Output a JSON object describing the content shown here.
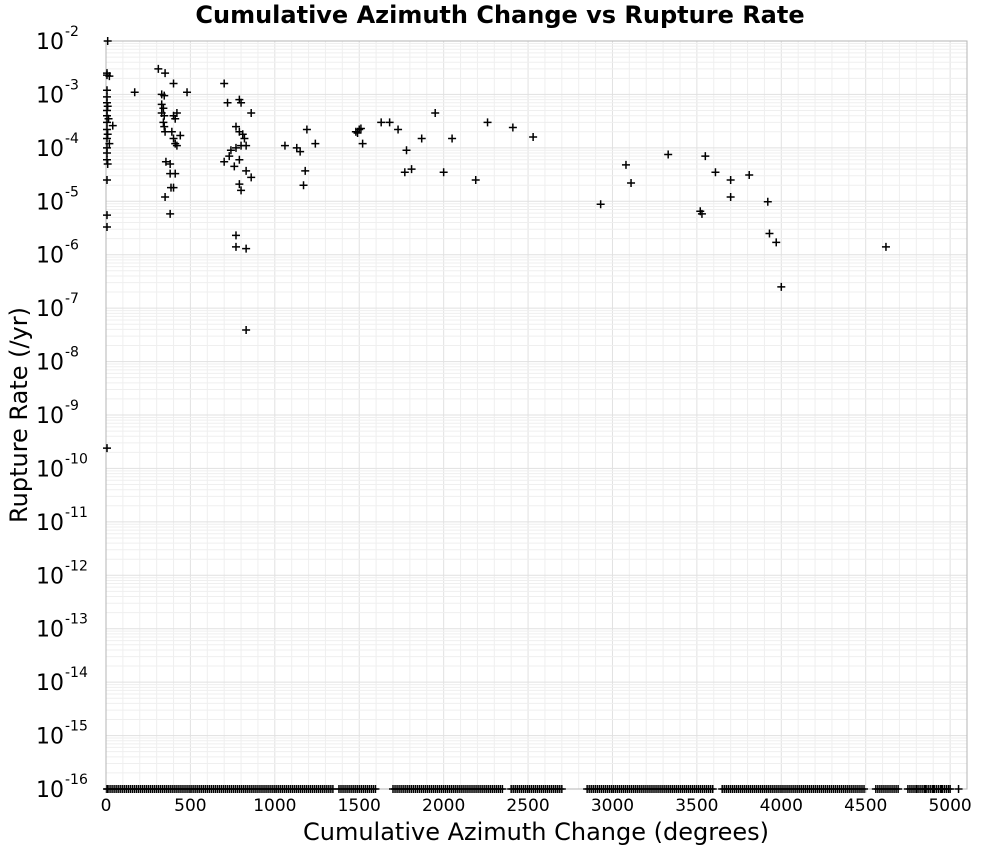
{
  "chart_data": {
    "type": "scatter",
    "title": "Cumulative Azimuth Change vs Rupture Rate",
    "xlabel": "Cumulative Azimuth Change (degrees)",
    "ylabel": "Rupture Rate (/yr)",
    "xlim": [
      0,
      5100
    ],
    "ylim": [
      1e-16,
      0.01
    ],
    "yscale": "log",
    "grid": true,
    "marker": "+",
    "marker_color": "#000000",
    "x_ticks": [
      "0",
      "500",
      "1000",
      "1500",
      "2000",
      "2500",
      "3000",
      "3500",
      "4000",
      "4500",
      "5000"
    ],
    "x_tick_values": [
      0,
      500,
      1000,
      1500,
      2000,
      2500,
      3000,
      3500,
      4000,
      4500,
      5000
    ],
    "y_ticks": [
      {
        "base": "10",
        "exp": "-2"
      },
      {
        "base": "10",
        "exp": "-3"
      },
      {
        "base": "10",
        "exp": "-4"
      },
      {
        "base": "10",
        "exp": "-5"
      },
      {
        "base": "10",
        "exp": "-6"
      },
      {
        "base": "10",
        "exp": "-7"
      },
      {
        "base": "10",
        "exp": "-8"
      },
      {
        "base": "10",
        "exp": "-9"
      },
      {
        "base": "10",
        "exp": "-10"
      },
      {
        "base": "10",
        "exp": "-11"
      },
      {
        "base": "10",
        "exp": "-12"
      },
      {
        "base": "10",
        "exp": "-13"
      },
      {
        "base": "10",
        "exp": "-14"
      },
      {
        "base": "10",
        "exp": "-15"
      },
      {
        "base": "10",
        "exp": "-16"
      }
    ],
    "y_tick_exponents": [
      -2,
      -3,
      -4,
      -5,
      -6,
      -7,
      -8,
      -9,
      -10,
      -11,
      -12,
      -13,
      -14,
      -15,
      -16
    ],
    "points": [
      [
        10,
        0.01
      ],
      [
        0,
        0.0025
      ],
      [
        5,
        0.0023
      ],
      [
        20,
        0.0022
      ],
      [
        0,
        0.0012
      ],
      [
        5,
        0.0009
      ],
      [
        0,
        0.0007
      ],
      [
        10,
        0.0006
      ],
      [
        5,
        0.0005
      ],
      [
        0,
        0.0004
      ],
      [
        15,
        0.00035
      ],
      [
        5,
        0.0003
      ],
      [
        40,
        0.00026
      ],
      [
        0,
        0.00022
      ],
      [
        10,
        0.00018
      ],
      [
        5,
        0.00015
      ],
      [
        20,
        0.00012
      ],
      [
        0,
        0.0001
      ],
      [
        5,
        8e-05
      ],
      [
        0,
        6e-05
      ],
      [
        10,
        5e-05
      ],
      [
        5,
        2.5e-05
      ],
      [
        0,
        5.5e-06
      ],
      [
        0,
        3.3e-06
      ],
      [
        0,
        2.4e-10
      ],
      [
        170,
        0.0011
      ],
      [
        310,
        0.003
      ],
      [
        350,
        0.0025
      ],
      [
        330,
        0.001
      ],
      [
        345,
        0.00095
      ],
      [
        330,
        0.00065
      ],
      [
        340,
        0.00055
      ],
      [
        330,
        0.00045
      ],
      [
        345,
        0.0004
      ],
      [
        340,
        0.0003
      ],
      [
        345,
        0.00025
      ],
      [
        350,
        0.0002
      ],
      [
        355,
        5.5e-05
      ],
      [
        350,
        1.2e-05
      ],
      [
        400,
        0.0016
      ],
      [
        480,
        0.0011
      ],
      [
        400,
        0.0004
      ],
      [
        410,
        0.00035
      ],
      [
        420,
        0.00045
      ],
      [
        390,
        0.0002
      ],
      [
        400,
        0.00015
      ],
      [
        410,
        0.00012
      ],
      [
        420,
        0.00011
      ],
      [
        440,
        0.00017
      ],
      [
        380,
        5e-05
      ],
      [
        380,
        3.3e-05
      ],
      [
        410,
        3.3e-05
      ],
      [
        385,
        1.8e-05
      ],
      [
        400,
        1.8e-05
      ],
      [
        380,
        5.8e-06
      ],
      [
        700,
        0.0016
      ],
      [
        720,
        0.0007
      ],
      [
        790,
        0.0008
      ],
      [
        800,
        0.0007
      ],
      [
        860,
        0.00045
      ],
      [
        770,
        0.00025
      ],
      [
        790,
        0.0002
      ],
      [
        810,
        0.00018
      ],
      [
        820,
        0.00015
      ],
      [
        830,
        0.00011
      ],
      [
        800,
        0.00011
      ],
      [
        770,
        0.0001
      ],
      [
        740,
        9e-05
      ],
      [
        730,
        7e-05
      ],
      [
        700,
        5.5e-05
      ],
      [
        790,
        6e-05
      ],
      [
        760,
        4.5e-05
      ],
      [
        830,
        3.7e-05
      ],
      [
        860,
        2.8e-05
      ],
      [
        790,
        2.1e-05
      ],
      [
        800,
        1.6e-05
      ],
      [
        770,
        2.3e-06
      ],
      [
        770,
        1.4e-06
      ],
      [
        830,
        1.3e-06
      ],
      [
        830,
        3.9e-08
      ],
      [
        1060,
        0.00011
      ],
      [
        1130,
        0.0001
      ],
      [
        1150,
        8.5e-05
      ],
      [
        1190,
        0.00022
      ],
      [
        1240,
        0.00012
      ],
      [
        1180,
        3.7e-05
      ],
      [
        1170,
        2e-05
      ],
      [
        1480,
        0.0002
      ],
      [
        1500,
        0.00022
      ],
      [
        1510,
        0.00023
      ],
      [
        1490,
        0.00019
      ],
      [
        1520,
        0.00012
      ],
      [
        1630,
        0.0003
      ],
      [
        1680,
        0.0003
      ],
      [
        1730,
        0.00022
      ],
      [
        1780,
        9e-05
      ],
      [
        1870,
        0.00015
      ],
      [
        1770,
        3.5e-05
      ],
      [
        1810,
        4e-05
      ],
      [
        1950,
        0.00045
      ],
      [
        2000,
        3.5e-05
      ],
      [
        2050,
        0.00015
      ],
      [
        2190,
        2.5e-05
      ],
      [
        2260,
        0.0003
      ],
      [
        2410,
        0.00024
      ],
      [
        2530,
        0.00016
      ],
      [
        2930,
        8.8e-06
      ],
      [
        3080,
        4.8e-05
      ],
      [
        3110,
        2.2e-05
      ],
      [
        3330,
        7.5e-05
      ],
      [
        3550,
        7e-05
      ],
      [
        3610,
        3.5e-05
      ],
      [
        3520,
        6.5e-06
      ],
      [
        3530,
        5.8e-06
      ],
      [
        3700,
        2.5e-05
      ],
      [
        3700,
        1.2e-05
      ],
      [
        3810,
        3.1e-05
      ],
      [
        3920,
        9.8e-06
      ],
      [
        3930,
        2.5e-06
      ],
      [
        3970,
        1.7e-06
      ],
      [
        4000,
        2.5e-07
      ],
      [
        4620,
        1.4e-06
      ]
    ],
    "floor_value": 1e-16,
    "floor_dense_ranges": [
      [
        0,
        1350
      ],
      [
        1380,
        1600
      ],
      [
        1700,
        2350
      ],
      [
        2400,
        2700
      ],
      [
        2850,
        3600
      ],
      [
        3650,
        4500
      ],
      [
        4560,
        4700
      ],
      [
        4750,
        5000
      ]
    ],
    "floor_sparse_x": [
      4800,
      4850,
      4900,
      4950,
      5000,
      5050
    ]
  }
}
